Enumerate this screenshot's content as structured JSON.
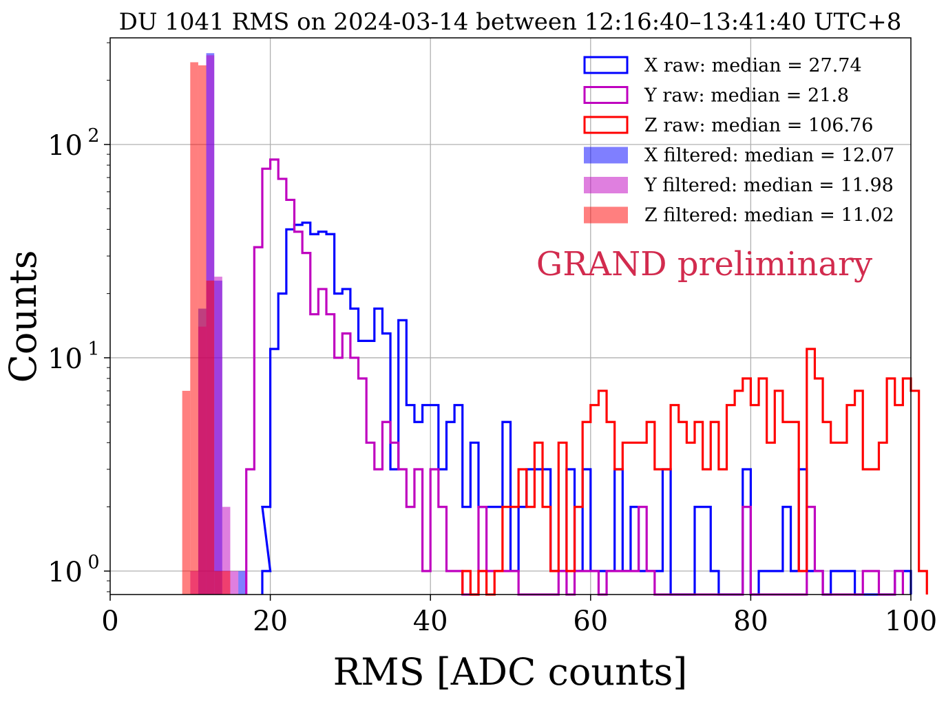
{
  "chart_data": {
    "type": "histogram",
    "title": "DU 1041 RMS on 2024-03-14 between 12:16:40–13:41:40 UTC+8",
    "xlabel": "RMS [ADC counts]",
    "ylabel": "Counts",
    "xlim": [
      0,
      100
    ],
    "ylim_log10": [
      -0.11,
      2.5
    ],
    "yscale": "log",
    "grid": true,
    "x_ticks": [
      0,
      20,
      40,
      60,
      80,
      100
    ],
    "x_tick_labels": [
      "0",
      "20",
      "40",
      "60",
      "80",
      "100"
    ],
    "y_ticks": [
      1,
      10,
      100
    ],
    "y_tick_bases": [
      "10",
      "10",
      "10"
    ],
    "y_tick_exponents": [
      "0",
      "1",
      "2"
    ],
    "legend_position": "top-right",
    "annotation": "GRAND preliminary",
    "annotation_color": "#d22b4e",
    "series": [
      {
        "name": "X raw: median = 27.74",
        "style": "step",
        "color": "#0000ff",
        "bins": [
          [
            19,
            1
          ],
          [
            19,
            2
          ],
          [
            20,
            11
          ],
          [
            21,
            20
          ],
          [
            22,
            40
          ],
          [
            23,
            42
          ],
          [
            24,
            43
          ],
          [
            25,
            38
          ],
          [
            26,
            39
          ],
          [
            27,
            38
          ],
          [
            28,
            20
          ],
          [
            29,
            21
          ],
          [
            30,
            17
          ],
          [
            31,
            12
          ],
          [
            32,
            12
          ],
          [
            33,
            17
          ],
          [
            34,
            13
          ],
          [
            35,
            3
          ],
          [
            36,
            15
          ],
          [
            37,
            6
          ],
          [
            38,
            5
          ],
          [
            39,
            6
          ],
          [
            40,
            6
          ],
          [
            41,
            3
          ],
          [
            42,
            5
          ],
          [
            43,
            6
          ],
          [
            44,
            2
          ],
          [
            45,
            4
          ],
          [
            46,
            2
          ],
          [
            47,
            2
          ],
          [
            48,
            2
          ],
          [
            49,
            5
          ],
          [
            50,
            1
          ],
          [
            51,
            2
          ],
          [
            52,
            3
          ],
          [
            53,
            3
          ],
          [
            54,
            3
          ],
          [
            55,
            1
          ],
          [
            56,
            1
          ],
          [
            57,
            3
          ],
          [
            58,
            1
          ],
          [
            59,
            3
          ],
          [
            60,
            1
          ],
          [
            61,
            1
          ],
          [
            62,
            1
          ],
          [
            63,
            3
          ],
          [
            64,
            1
          ],
          [
            65,
            2
          ],
          [
            66,
            1
          ],
          [
            67,
            1
          ],
          [
            68,
            1
          ],
          [
            69,
            3
          ],
          [
            70,
            0
          ],
          [
            71,
            0
          ],
          [
            72,
            0
          ],
          [
            73,
            2
          ],
          [
            74,
            2
          ],
          [
            75,
            1
          ],
          [
            76,
            0
          ],
          [
            77,
            0
          ],
          [
            78,
            0
          ],
          [
            79,
            3
          ],
          [
            80,
            0
          ],
          [
            81,
            1
          ],
          [
            82,
            1
          ],
          [
            83,
            1
          ],
          [
            84,
            2
          ],
          [
            85,
            1
          ],
          [
            86,
            3
          ],
          [
            87,
            1
          ],
          [
            88,
            1
          ],
          [
            89,
            0
          ],
          [
            90,
            1
          ],
          [
            91,
            1
          ],
          [
            92,
            1
          ],
          [
            93,
            0
          ],
          [
            94,
            0
          ],
          [
            95,
            0
          ],
          [
            96,
            0
          ],
          [
            97,
            0
          ],
          [
            98,
            1
          ],
          [
            99,
            1
          ]
        ]
      },
      {
        "name": "Y raw: median = 21.8",
        "style": "step",
        "color": "#bf00bf",
        "bins": [
          [
            17,
            3
          ],
          [
            18,
            33
          ],
          [
            19,
            77
          ],
          [
            20,
            85
          ],
          [
            21,
            69
          ],
          [
            22,
            55
          ],
          [
            23,
            39
          ],
          [
            24,
            31
          ],
          [
            25,
            16
          ],
          [
            26,
            21
          ],
          [
            27,
            16
          ],
          [
            28,
            10
          ],
          [
            29,
            13
          ],
          [
            30,
            10
          ],
          [
            31,
            8
          ],
          [
            32,
            4
          ],
          [
            33,
            3
          ],
          [
            34,
            5
          ],
          [
            35,
            4
          ],
          [
            36,
            3
          ],
          [
            37,
            2
          ],
          [
            38,
            3
          ],
          [
            39,
            1
          ],
          [
            40,
            3
          ],
          [
            41,
            2
          ],
          [
            42,
            1
          ],
          [
            43,
            1
          ],
          [
            44,
            0
          ],
          [
            45,
            0
          ],
          [
            46,
            2
          ],
          [
            47,
            1
          ],
          [
            48,
            1
          ],
          [
            49,
            1
          ],
          [
            50,
            1
          ],
          [
            51,
            0
          ],
          [
            52,
            0
          ],
          [
            53,
            0
          ],
          [
            54,
            0
          ],
          [
            55,
            0
          ],
          [
            56,
            1
          ],
          [
            57,
            0
          ],
          [
            58,
            1
          ],
          [
            59,
            1
          ],
          [
            60,
            1
          ],
          [
            61,
            0
          ],
          [
            62,
            1
          ],
          [
            63,
            1
          ],
          [
            64,
            1
          ],
          [
            65,
            1
          ],
          [
            66,
            2
          ],
          [
            67,
            1
          ],
          [
            68,
            0
          ],
          [
            69,
            0
          ],
          [
            70,
            0
          ],
          [
            71,
            0
          ],
          [
            72,
            0
          ],
          [
            73,
            0
          ],
          [
            74,
            0
          ],
          [
            75,
            0
          ],
          [
            76,
            0
          ],
          [
            77,
            0
          ],
          [
            78,
            0
          ],
          [
            79,
            2
          ],
          [
            80,
            0
          ],
          [
            81,
            0
          ],
          [
            82,
            0
          ],
          [
            83,
            0
          ],
          [
            84,
            0
          ],
          [
            85,
            0
          ],
          [
            86,
            0
          ],
          [
            87,
            2
          ],
          [
            88,
            1
          ],
          [
            89,
            0
          ],
          [
            90,
            0
          ],
          [
            91,
            0
          ],
          [
            92,
            0
          ],
          [
            93,
            0
          ],
          [
            94,
            1
          ],
          [
            95,
            1
          ],
          [
            96,
            0
          ],
          [
            97,
            0
          ],
          [
            98,
            1
          ]
        ]
      },
      {
        "name": "Z raw: median = 106.76",
        "style": "step",
        "color": "#ff0000",
        "bins": [
          [
            44,
            1
          ],
          [
            45,
            0
          ],
          [
            46,
            1
          ],
          [
            47,
            0
          ],
          [
            48,
            1
          ],
          [
            49,
            2
          ],
          [
            50,
            2
          ],
          [
            51,
            3
          ],
          [
            52,
            2
          ],
          [
            53,
            4
          ],
          [
            54,
            2
          ],
          [
            55,
            1
          ],
          [
            56,
            4
          ],
          [
            57,
            1
          ],
          [
            58,
            2
          ],
          [
            59,
            5
          ],
          [
            60,
            6
          ],
          [
            61,
            7
          ],
          [
            62,
            5
          ],
          [
            63,
            3
          ],
          [
            64,
            4
          ],
          [
            65,
            4
          ],
          [
            66,
            4
          ],
          [
            67,
            5
          ],
          [
            68,
            3
          ],
          [
            69,
            3
          ],
          [
            70,
            6
          ],
          [
            71,
            5
          ],
          [
            72,
            4
          ],
          [
            73,
            5
          ],
          [
            74,
            3
          ],
          [
            75,
            5
          ],
          [
            76,
            3
          ],
          [
            77,
            6
          ],
          [
            78,
            7
          ],
          [
            79,
            8
          ],
          [
            80,
            6
          ],
          [
            81,
            8
          ],
          [
            82,
            4
          ],
          [
            83,
            7
          ],
          [
            84,
            5
          ],
          [
            85,
            5
          ],
          [
            86,
            1
          ],
          [
            87,
            11
          ],
          [
            88,
            8
          ],
          [
            89,
            5
          ],
          [
            90,
            4
          ],
          [
            91,
            4
          ],
          [
            92,
            6
          ],
          [
            93,
            7
          ],
          [
            94,
            3
          ],
          [
            95,
            3
          ],
          [
            96,
            4
          ],
          [
            97,
            8
          ],
          [
            98,
            6
          ],
          [
            99,
            8
          ],
          [
            100,
            7
          ],
          [
            101,
            1
          ]
        ]
      },
      {
        "name": "X filtered: median = 12.07",
        "style": "filled",
        "color": "#0000ff",
        "bins": [
          [
            11,
            17
          ],
          [
            12,
            268
          ],
          [
            13,
            23
          ],
          [
            14,
            0
          ],
          [
            15,
            0
          ],
          [
            16,
            1
          ]
        ]
      },
      {
        "name": "Y filtered: median = 11.98",
        "style": "filled",
        "color": "#bf00bf",
        "bins": [
          [
            10,
            1
          ],
          [
            11,
            14
          ],
          [
            12,
            262
          ],
          [
            13,
            24
          ],
          [
            14,
            2
          ],
          [
            15,
            1
          ]
        ]
      },
      {
        "name": "Z filtered: median = 11.02",
        "style": "filled",
        "color": "#ff0000",
        "bins": [
          [
            9,
            7
          ],
          [
            10,
            243
          ],
          [
            11,
            235
          ],
          [
            12,
            23
          ],
          [
            13,
            1
          ],
          [
            14,
            1
          ]
        ]
      }
    ]
  }
}
